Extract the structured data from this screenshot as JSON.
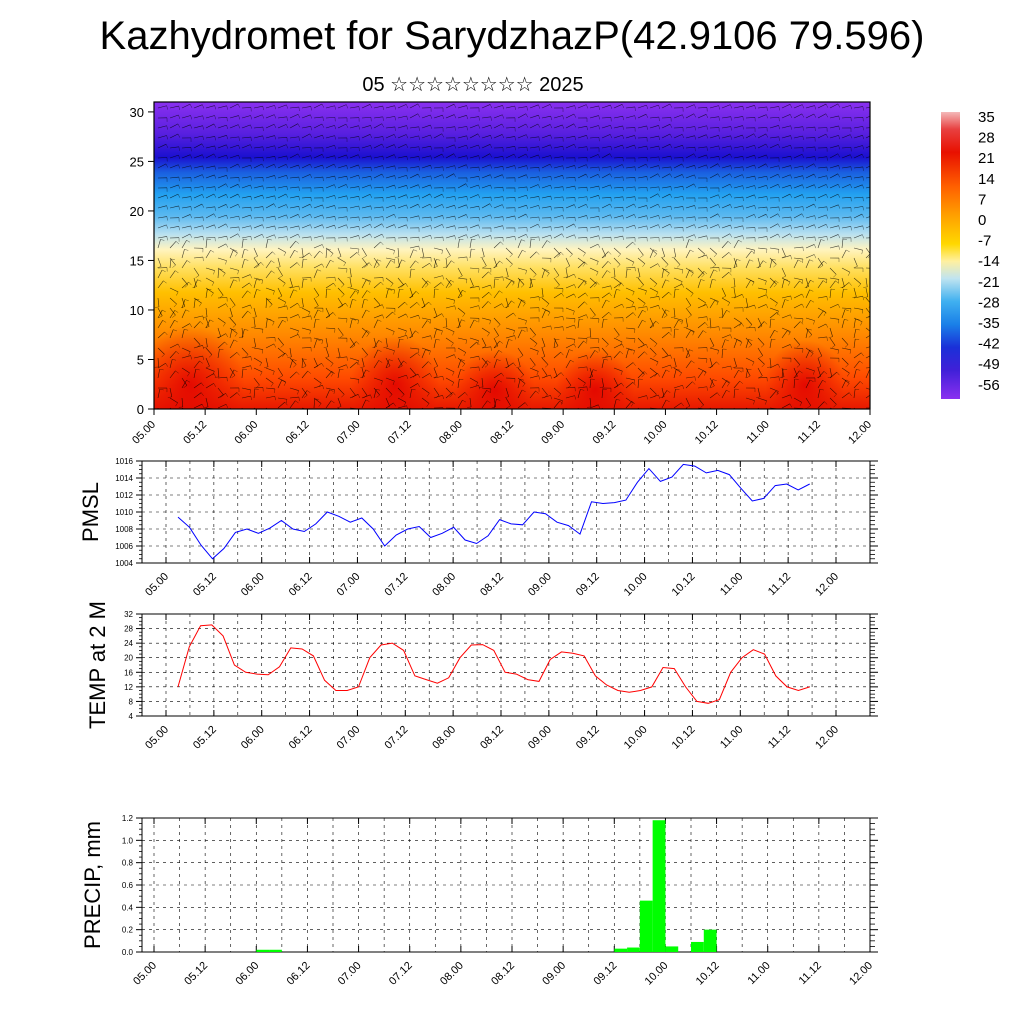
{
  "header": {
    "title": "Kazhydromet for SarydzhazP(42.9106 79.596)",
    "subtitle": "05 ☆☆☆☆☆☆☆☆ 2025"
  },
  "colors": {
    "pmsl_line": "#0000ff",
    "temp_line": "#ff0000",
    "precip_bar": "#00ff00",
    "colorbar_top": "#f0a0a0",
    "colorbar_warm": "#e60000",
    "colorbar_mid": "#ffee99",
    "colorbar_cold": "#3399ff",
    "colorbar_bottom": "#8a2be2"
  },
  "chart_data": [
    {
      "type": "heatmap",
      "name": "upper-air-cross-section",
      "x_ticks": [
        "05.00",
        "05.12",
        "06.00",
        "06.12",
        "07.00",
        "07.12",
        "08.00",
        "08.12",
        "09.00",
        "09.12",
        "10.00",
        "10.12",
        "11.00",
        "11.12",
        "12.00"
      ],
      "y_ticks": [
        0,
        5,
        10,
        15,
        20,
        25,
        30
      ],
      "ylim": [
        0,
        31
      ],
      "colorbar_labels": [
        "35",
        "28",
        "21",
        "14",
        "7",
        "0",
        "-7",
        "-14",
        "-21",
        "-28",
        "-35",
        "-42",
        "-49",
        "-56"
      ],
      "has_wind_barbs": true
    },
    {
      "type": "line",
      "name": "pmsl",
      "ylabel": "PMSL",
      "ylim": [
        1004,
        1016
      ],
      "y_ticks": [
        1004,
        1006,
        1008,
        1010,
        1012,
        1014,
        1016
      ],
      "x_ticks": [
        "05.00",
        "05.12",
        "06.00",
        "06.12",
        "07.00",
        "07.12",
        "08.00",
        "08.12",
        "09.00",
        "09.12",
        "10.00",
        "10.12",
        "11.00",
        "11.12",
        "12.00"
      ],
      "grid": true,
      "values": [
        1009.4,
        1008.2,
        1006.1,
        1004.5,
        1005.7,
        1007.6,
        1008.0,
        1007.5,
        1008.1,
        1009.0,
        1008.0,
        1007.7,
        1008.6,
        1010.0,
        1009.5,
        1008.8,
        1009.3,
        1008.0,
        1006.0,
        1007.3,
        1008.0,
        1008.3,
        1007.0,
        1007.5,
        1008.2,
        1006.7,
        1006.3,
        1007.2,
        1009.1,
        1008.6,
        1008.5,
        1010.0,
        1009.8,
        1008.8,
        1008.4,
        1007.4,
        1011.2,
        1011.0,
        1011.1,
        1011.4,
        1013.5,
        1015.1,
        1013.6,
        1014.1,
        1015.6,
        1015.4,
        1014.6,
        1014.9,
        1014.4,
        1012.8,
        1011.3,
        1011.6,
        1013.1,
        1013.3,
        1012.6,
        1013.3
      ]
    },
    {
      "type": "line",
      "name": "temp-2m",
      "ylabel": "TEMP at 2 M",
      "ylim": [
        4,
        32
      ],
      "y_ticks": [
        4,
        8,
        12,
        16,
        20,
        24,
        28,
        32
      ],
      "x_ticks": [
        "05.00",
        "05.12",
        "06.00",
        "06.12",
        "07.00",
        "07.12",
        "08.00",
        "08.12",
        "09.00",
        "09.12",
        "10.00",
        "10.12",
        "11.00",
        "11.12",
        "12.00"
      ],
      "grid": true,
      "values": [
        12,
        23,
        28.8,
        29,
        26,
        18,
        16,
        15.5,
        15.3,
        17.5,
        22.7,
        22.4,
        20.5,
        13.8,
        11,
        11,
        12,
        20,
        23.5,
        24,
        22,
        15,
        14,
        13,
        14.5,
        20,
        23.5,
        23.6,
        22,
        16,
        15.5,
        14,
        13.5,
        19.5,
        21.6,
        21.2,
        20.5,
        15,
        12.5,
        11,
        10.5,
        11,
        12,
        17.3,
        17,
        12,
        8,
        7.5,
        8.5,
        16,
        20,
        22.2,
        21,
        15,
        12,
        11,
        12
      ]
    },
    {
      "type": "bar",
      "name": "precip",
      "ylabel": "PRECIP, mm",
      "ylim": [
        0,
        1.2
      ],
      "y_ticks": [
        "0.0",
        "0.2",
        "0.4",
        "0.6",
        "0.8",
        "1.0",
        "1.2"
      ],
      "x_ticks": [
        "05.00",
        "05.12",
        "06.00",
        "06.12",
        "07.00",
        "07.12",
        "08.00",
        "08.12",
        "09.00",
        "09.12",
        "10.00",
        "10.12",
        "11.00",
        "11.12",
        "12.00"
      ],
      "grid": true,
      "values": [
        0,
        0,
        0,
        0,
        0,
        0,
        0,
        0,
        0.02,
        0.02,
        0,
        0,
        0,
        0,
        0,
        0,
        0,
        0,
        0,
        0,
        0,
        0,
        0,
        0,
        0,
        0,
        0,
        0,
        0,
        0,
        0,
        0,
        0,
        0,
        0,
        0,
        0.03,
        0.04,
        0.46,
        1.18,
        0.05,
        0,
        0.09,
        0.2,
        0,
        0,
        0,
        0,
        0,
        0,
        0,
        0,
        0,
        0,
        0,
        0
      ]
    }
  ]
}
